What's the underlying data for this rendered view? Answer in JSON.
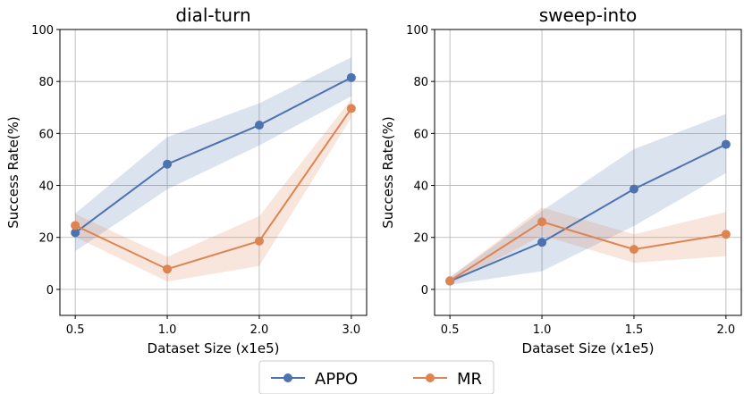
{
  "series_colors": {
    "APPO": "#4c72b0",
    "MR": "#dd8452"
  },
  "legend": {
    "entries": [
      "APPO",
      "MR"
    ],
    "placement": "bottom-center"
  },
  "chart_data": [
    {
      "type": "line",
      "title": "dial-turn",
      "xlabel": "Dataset Size (x1e5)",
      "ylabel": "Success Rate(%)",
      "x_tick_labels": [
        "0.5",
        "1.0",
        "2.0",
        "3.0"
      ],
      "y_ticks": [
        "0",
        "20",
        "40",
        "60",
        "80",
        "100"
      ],
      "ylim": [
        -10,
        100
      ],
      "grid": true,
      "series": [
        {
          "name": "APPO",
          "values": [
            21.8,
            48.2,
            63.2,
            81.5
          ],
          "band_low": [
            14.7,
            38.5,
            55.4,
            74.3
          ],
          "band_high": [
            29.2,
            58.6,
            71.6,
            89.3
          ]
        },
        {
          "name": "MR",
          "values": [
            24.6,
            7.8,
            18.6,
            69.6
          ],
          "band_low": [
            20.2,
            3.0,
            9.0,
            66.1
          ],
          "band_high": [
            29.0,
            12.5,
            28.2,
            73.2
          ]
        }
      ]
    },
    {
      "type": "line",
      "title": "sweep-into",
      "xlabel": "Dataset Size (x1e5)",
      "ylabel": "Success Rate(%)",
      "x_tick_labels": [
        "0.5",
        "1.0",
        "1.5",
        "2.0"
      ],
      "y_ticks": [
        "0",
        "20",
        "40",
        "60",
        "80",
        "100"
      ],
      "ylim": [
        -10,
        100
      ],
      "grid": true,
      "series": [
        {
          "name": "APPO",
          "values": [
            3.2,
            18.1,
            38.6,
            55.8
          ],
          "band_low": [
            1.8,
            7.0,
            24.4,
            44.8
          ],
          "band_high": [
            4.6,
            30.2,
            54.0,
            67.5
          ]
        },
        {
          "name": "MR",
          "values": [
            3.3,
            26.0,
            15.4,
            21.2
          ],
          "band_low": [
            1.9,
            20.8,
            10.2,
            12.8
          ],
          "band_high": [
            4.7,
            31.5,
            21.2,
            29.8
          ]
        }
      ]
    }
  ]
}
